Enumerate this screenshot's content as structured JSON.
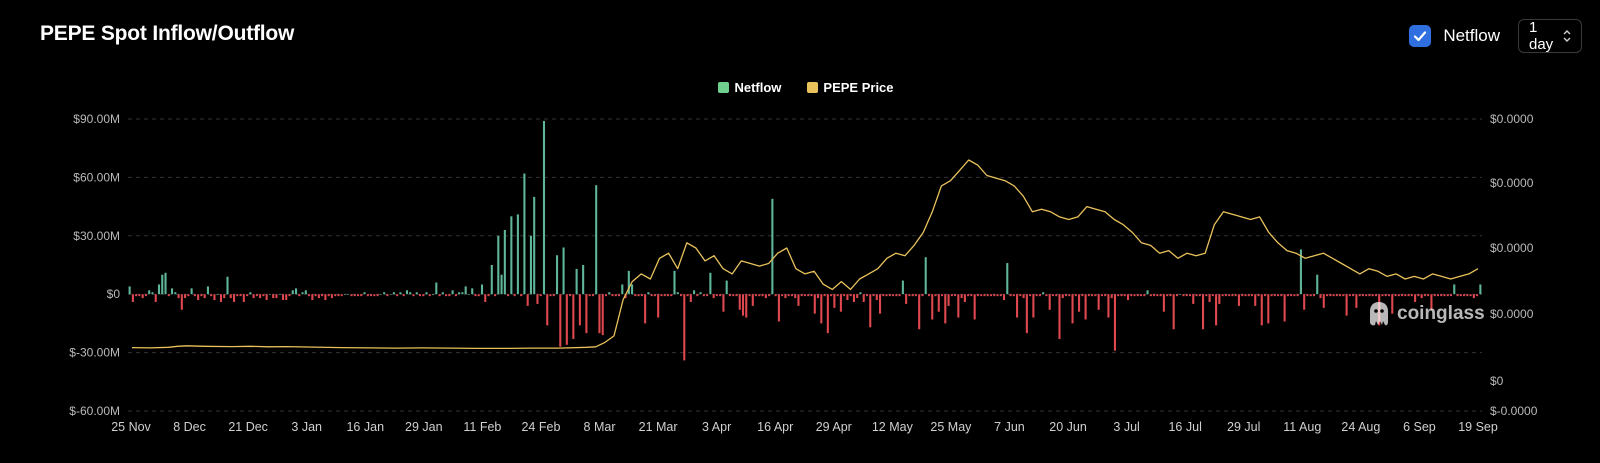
{
  "header": {
    "title": "PEPE Spot Inflow/Outflow",
    "netflow_toggle_label": "Netflow",
    "netflow_checked": true,
    "interval_value": "1 day"
  },
  "watermark": {
    "text": "coinglass"
  },
  "colors": {
    "positive": "#5fb69a",
    "negative": "#e0484f",
    "price": "#e9c25c",
    "checkbox": "#2f6fe0"
  },
  "chart_data": {
    "type": "bar",
    "legend": [
      {
        "name": "Netflow",
        "color": "#6fcf8f"
      },
      {
        "name": "PEPE Price",
        "color": "#e9c25c"
      }
    ],
    "x_tick_labels": [
      "25 Nov",
      "8 Dec",
      "21 Dec",
      "3 Jan",
      "16 Jan",
      "29 Jan",
      "11 Feb",
      "24 Feb",
      "8 Mar",
      "21 Mar",
      "3 Apr",
      "16 Apr",
      "29 Apr",
      "12 May",
      "25 May",
      "7 Jun",
      "20 Jun",
      "3 Jul",
      "16 Jul",
      "29 Jul",
      "11 Aug",
      "24 Aug",
      "6 Sep",
      "19 Sep"
    ],
    "y_left": {
      "ticks": [
        90,
        60,
        30,
        0,
        -30,
        -60
      ],
      "tick_labels": [
        "$90.00M",
        "$60.00M",
        "$30.00M",
        "$0",
        "$-30.00M",
        "$-60.00M"
      ],
      "ylim": [
        -60,
        90
      ],
      "unit": "millions USD"
    },
    "y_right": {
      "tick_labels": [
        "$0.0000",
        "$0.0000",
        "$0.0000",
        "$0.0000",
        "$0",
        "$-0.0000"
      ]
    },
    "grid": true,
    "legend_placement": "top-center",
    "series": [
      {
        "name": "Netflow",
        "type": "bar",
        "values": [
          4,
          -4,
          -1,
          -1,
          -2,
          -1,
          2,
          1,
          -4,
          5,
          10,
          11,
          -1,
          3,
          1,
          -2,
          -8,
          -2,
          -1,
          3,
          -1,
          -3,
          -1,
          -2,
          4,
          -1,
          -3,
          0,
          -4,
          -2,
          9,
          -2,
          -4,
          -1,
          -1,
          -4,
          -1,
          1,
          -2,
          -1,
          -2,
          -1,
          -3,
          0,
          -2,
          -2,
          0,
          -3,
          -3,
          -1,
          2,
          3,
          -1,
          1,
          2,
          -1,
          -3,
          -1,
          -2,
          -1,
          -3,
          -1,
          -2,
          -1,
          -1,
          -1,
          0,
          0,
          -1,
          -1,
          -1,
          -1,
          1,
          -1,
          -1,
          -1,
          -1,
          0,
          1,
          -1,
          0,
          1,
          -1,
          1,
          -1,
          2,
          1,
          -1,
          1,
          -1,
          -1,
          1,
          -1,
          0,
          6,
          -1,
          1,
          -1,
          -1,
          2,
          -1,
          1,
          1,
          4,
          0,
          3,
          -1,
          -1,
          5,
          -4,
          -1,
          15,
          -1,
          30,
          10,
          33,
          -1,
          40,
          -1,
          41,
          -1,
          62,
          -6,
          30,
          50,
          -5,
          -1,
          89,
          -16,
          -1,
          -1,
          20,
          -27,
          24,
          -26,
          -1,
          -23,
          13,
          -16,
          15,
          -20,
          -1,
          -1,
          56,
          -20,
          -21,
          -1,
          1,
          -1,
          -1,
          -1,
          5,
          -2,
          12,
          5,
          -1,
          -1,
          -1,
          -15,
          1,
          -1,
          -1,
          -12,
          -1,
          -1,
          -1,
          -1,
          12,
          1,
          -1,
          -34,
          -1,
          -4,
          2,
          -1,
          1,
          -1,
          -1,
          11,
          -2,
          -1,
          -1,
          -9,
          7,
          -1,
          -1,
          -1,
          -8,
          -11,
          -12,
          -1,
          -6,
          -1,
          -1,
          -1,
          -2,
          -1,
          49,
          -1,
          -14,
          -1,
          -2,
          -1,
          -1,
          -2,
          -6,
          -1,
          -1,
          -1,
          -1,
          -10,
          -2,
          -15,
          -1,
          -20,
          -1,
          -7,
          -1,
          -9,
          -1,
          -3,
          -1,
          -4,
          -2,
          1,
          -4,
          -1,
          -17,
          -1,
          -3,
          -10,
          -1,
          -1,
          -1,
          -1,
          -1,
          -1,
          7,
          -5,
          -1,
          -1,
          -1,
          -18,
          -1,
          19,
          -1,
          -13,
          -1,
          -9,
          -1,
          -15,
          -6,
          -1,
          -1,
          -12,
          -2,
          -4,
          -1,
          -1,
          -13,
          -1,
          -1,
          -1,
          -1,
          -1,
          -1,
          -1,
          -1,
          -3,
          16,
          -1,
          -1,
          -12,
          -1,
          -2,
          -20,
          -1,
          -12,
          -1,
          -1,
          1,
          -1,
          -8,
          -1,
          -1,
          -23,
          -2,
          -1,
          -1,
          -15,
          -1,
          -9,
          -1,
          -13,
          -1,
          -1,
          -1,
          -8,
          -1,
          -1,
          -12,
          -2,
          -29,
          -1,
          -1,
          -1,
          -3,
          -1,
          -1,
          -1,
          -1,
          -1,
          2,
          -1,
          -1,
          -1,
          -1,
          -9,
          -1,
          -1,
          -18,
          -1,
          0,
          -1,
          -1,
          -1,
          -5,
          -1,
          -1,
          -18,
          -1,
          -4,
          -1,
          -16,
          -5,
          -1,
          -1,
          -1,
          -1,
          -1,
          -6,
          -1,
          -1,
          -1,
          -1,
          -6,
          -1,
          -16,
          -1,
          -15,
          -1,
          -1,
          -1,
          -1,
          -14,
          -1,
          -1,
          -1,
          -1,
          23,
          -8,
          -1,
          -1,
          -1,
          10,
          -2,
          -7,
          -1,
          -1,
          -1,
          -1,
          -1,
          -1,
          -11,
          -1,
          -1,
          -7,
          -1,
          -1,
          -1,
          -1,
          -1,
          -1,
          -16,
          -1,
          -1,
          -1,
          -10,
          -1,
          -1,
          -1,
          -1,
          -1,
          -1,
          -4,
          -1,
          -2,
          -1,
          -1,
          -8,
          -1,
          -1,
          -1,
          -1,
          -1,
          -1,
          5,
          -1,
          -1,
          -1,
          -1,
          -1,
          -2,
          -1,
          5
        ]
      },
      {
        "name": "PEPE Price",
        "type": "line",
        "values_relative": [
          [
            0,
            0.075
          ],
          [
            4,
            0.074
          ],
          [
            8,
            0.076
          ],
          [
            10,
            0.08
          ],
          [
            12,
            0.082
          ],
          [
            16,
            0.08
          ],
          [
            22,
            0.079
          ],
          [
            26,
            0.08
          ],
          [
            30,
            0.078
          ],
          [
            34,
            0.079
          ],
          [
            40,
            0.077
          ],
          [
            46,
            0.075
          ],
          [
            52,
            0.074
          ],
          [
            58,
            0.073
          ],
          [
            64,
            0.074
          ],
          [
            70,
            0.073
          ],
          [
            76,
            0.072
          ],
          [
            82,
            0.072
          ],
          [
            88,
            0.073
          ],
          [
            94,
            0.073
          ],
          [
            100,
            0.076
          ],
          [
            102,
            0.078
          ],
          [
            104,
            0.095
          ],
          [
            106,
            0.12
          ],
          [
            108,
            0.26
          ],
          [
            110,
            0.33
          ],
          [
            112,
            0.36
          ],
          [
            114,
            0.34
          ],
          [
            116,
            0.42
          ],
          [
            118,
            0.44
          ],
          [
            120,
            0.38
          ],
          [
            122,
            0.48
          ],
          [
            124,
            0.46
          ],
          [
            126,
            0.41
          ],
          [
            128,
            0.43
          ],
          [
            130,
            0.38
          ],
          [
            132,
            0.36
          ],
          [
            134,
            0.41
          ],
          [
            136,
            0.4
          ],
          [
            138,
            0.39
          ],
          [
            140,
            0.4
          ],
          [
            142,
            0.44
          ],
          [
            144,
            0.46
          ],
          [
            146,
            0.38
          ],
          [
            148,
            0.36
          ],
          [
            150,
            0.37
          ],
          [
            152,
            0.32
          ],
          [
            154,
            0.3
          ],
          [
            156,
            0.33
          ],
          [
            158,
            0.3
          ],
          [
            160,
            0.34
          ],
          [
            162,
            0.36
          ],
          [
            164,
            0.38
          ],
          [
            166,
            0.42
          ],
          [
            168,
            0.44
          ],
          [
            170,
            0.43
          ],
          [
            172,
            0.47
          ],
          [
            174,
            0.52
          ],
          [
            176,
            0.6
          ],
          [
            178,
            0.7
          ],
          [
            180,
            0.72
          ],
          [
            182,
            0.76
          ],
          [
            184,
            0.8
          ],
          [
            186,
            0.78
          ],
          [
            188,
            0.74
          ],
          [
            190,
            0.73
          ],
          [
            192,
            0.72
          ],
          [
            194,
            0.7
          ],
          [
            196,
            0.66
          ],
          [
            198,
            0.6
          ],
          [
            200,
            0.61
          ],
          [
            202,
            0.6
          ],
          [
            204,
            0.58
          ],
          [
            206,
            0.57
          ],
          [
            208,
            0.58
          ],
          [
            210,
            0.62
          ],
          [
            212,
            0.61
          ],
          [
            214,
            0.6
          ],
          [
            216,
            0.57
          ],
          [
            218,
            0.55
          ],
          [
            220,
            0.52
          ],
          [
            222,
            0.48
          ],
          [
            224,
            0.47
          ],
          [
            226,
            0.44
          ],
          [
            228,
            0.45
          ],
          [
            230,
            0.42
          ],
          [
            232,
            0.44
          ],
          [
            234,
            0.43
          ],
          [
            236,
            0.44
          ],
          [
            238,
            0.55
          ],
          [
            240,
            0.6
          ],
          [
            242,
            0.59
          ],
          [
            244,
            0.58
          ],
          [
            246,
            0.57
          ],
          [
            248,
            0.58
          ],
          [
            250,
            0.52
          ],
          [
            252,
            0.48
          ],
          [
            254,
            0.45
          ],
          [
            256,
            0.44
          ],
          [
            258,
            0.42
          ],
          [
            260,
            0.43
          ],
          [
            262,
            0.44
          ],
          [
            264,
            0.42
          ],
          [
            266,
            0.4
          ],
          [
            268,
            0.38
          ],
          [
            270,
            0.36
          ],
          [
            272,
            0.38
          ],
          [
            274,
            0.37
          ],
          [
            276,
            0.35
          ],
          [
            278,
            0.36
          ],
          [
            280,
            0.34
          ],
          [
            282,
            0.35
          ],
          [
            284,
            0.34
          ],
          [
            286,
            0.36
          ],
          [
            288,
            0.35
          ],
          [
            290,
            0.34
          ],
          [
            292,
            0.35
          ],
          [
            294,
            0.36
          ],
          [
            296,
            0.38
          ]
        ]
      }
    ]
  }
}
